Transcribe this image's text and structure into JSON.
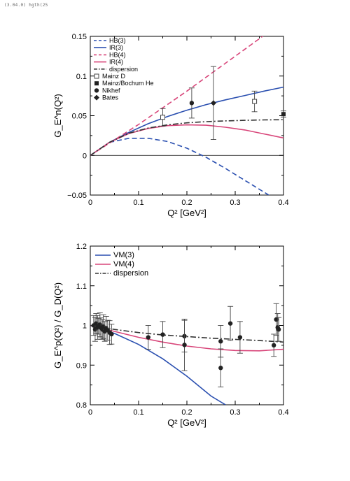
{
  "page_header": "(3.04.0) hgth(25",
  "chart_data": [
    {
      "type": "line",
      "title": "",
      "xlabel": "Q²  [GeV²]",
      "ylabel": "G_E^n(Q²)",
      "xlim": [
        0,
        0.4
      ],
      "ylim": [
        -0.05,
        0.15
      ],
      "xticks": [
        "0",
        "0.1",
        "0.2",
        "0.3",
        "0.4"
      ],
      "yticks": [
        "−0.05",
        "0",
        "0.05",
        "0.1",
        "0.15"
      ],
      "legend": {
        "placement": "top-left"
      },
      "series": [
        {
          "name": "HB(3)",
          "style": "dashed",
          "color": "#2a4fb0",
          "x": [
            0,
            0.04,
            0.08,
            0.12,
            0.16,
            0.2,
            0.24,
            0.28,
            0.32,
            0.36,
            0.38
          ],
          "y": [
            0,
            0.0165,
            0.0215,
            0.0215,
            0.0175,
            0.009,
            -0.0025,
            -0.0165,
            -0.0315,
            -0.0465,
            -0.054
          ]
        },
        {
          "name": "IR(3)",
          "style": "solid",
          "color": "#2a4fb0",
          "x": [
            0,
            0.04,
            0.08,
            0.12,
            0.16,
            0.2,
            0.24,
            0.28,
            0.32,
            0.36,
            0.4
          ],
          "y": [
            0,
            0.0165,
            0.029,
            0.04,
            0.049,
            0.057,
            0.064,
            0.07,
            0.0755,
            0.081,
            0.086
          ]
        },
        {
          "name": "HB(4)",
          "style": "dashed",
          "color": "#d8467a",
          "x": [
            0,
            0.05,
            0.1,
            0.15,
            0.2,
            0.25,
            0.3,
            0.35,
            0.37
          ],
          "y": [
            0,
            0.0195,
            0.039,
            0.06,
            0.081,
            0.103,
            0.125,
            0.147,
            0.156
          ]
        },
        {
          "name": "IR(4)",
          "style": "solid",
          "color": "#d8467a",
          "x": [
            0,
            0.04,
            0.08,
            0.12,
            0.16,
            0.2,
            0.24,
            0.28,
            0.32,
            0.36,
            0.4
          ],
          "y": [
            0,
            0.0165,
            0.0275,
            0.034,
            0.0375,
            0.0385,
            0.038,
            0.0355,
            0.032,
            0.027,
            0.022
          ]
        },
        {
          "name": "dispersion",
          "style": "dashdot",
          "color": "#333333",
          "x": [
            0,
            0.04,
            0.08,
            0.12,
            0.16,
            0.2,
            0.24,
            0.28,
            0.32,
            0.36,
            0.4
          ],
          "y": [
            0,
            0.0165,
            0.028,
            0.0345,
            0.0385,
            0.041,
            0.0425,
            0.0435,
            0.0442,
            0.0447,
            0.045
          ]
        }
      ],
      "points": [
        {
          "name": "Mainz D",
          "marker": "square-open",
          "x": [
            0.15,
            0.34
          ],
          "y": [
            0.048,
            0.068
          ],
          "err": [
            0.011,
            0.013
          ]
        },
        {
          "name": "Mainz/Bochum He",
          "marker": "square-filled",
          "x": [
            0.4
          ],
          "y": [
            0.052
          ],
          "err": [
            0.004
          ]
        },
        {
          "name": "Nikhef",
          "marker": "circle-filled",
          "x": [
            0.21
          ],
          "y": [
            0.066
          ],
          "err": [
            0.019
          ]
        },
        {
          "name": "Bates",
          "marker": "diamond-filled",
          "x": [
            0.255
          ],
          "y": [
            0.066
          ],
          "err": [
            0.046
          ]
        }
      ],
      "reference_line": {
        "y": 0
      }
    },
    {
      "type": "line",
      "title": "",
      "xlabel": "Q²  [GeV²]",
      "ylabel": "G_E^p(Q²) / G_D(Q²)",
      "xlim": [
        0,
        0.4
      ],
      "ylim": [
        0.8,
        1.2
      ],
      "xticks": [
        "0",
        "0.1",
        "0.2",
        "0.3",
        "0.4"
      ],
      "yticks": [
        "0.8",
        "0.9",
        "1",
        "1.1",
        "1.2"
      ],
      "legend": {
        "placement": "top-left"
      },
      "series": [
        {
          "name": "VM(3)",
          "style": "solid",
          "color": "#2a4fb0",
          "x": [
            0,
            0.05,
            0.1,
            0.15,
            0.2,
            0.25,
            0.28
          ],
          "y": [
            1.0,
            0.98,
            0.952,
            0.916,
            0.872,
            0.822,
            0.8
          ]
        },
        {
          "name": "VM(4)",
          "style": "solid",
          "color": "#d8467a",
          "x": [
            0,
            0.05,
            0.1,
            0.15,
            0.2,
            0.25,
            0.3,
            0.35,
            0.4
          ],
          "y": [
            1.0,
            0.985,
            0.97,
            0.958,
            0.948,
            0.941,
            0.937,
            0.936,
            0.94
          ]
        },
        {
          "name": "dispersion",
          "style": "dashdot",
          "color": "#333333",
          "x": [
            0,
            0.05,
            0.1,
            0.15,
            0.2,
            0.25,
            0.3,
            0.35,
            0.4
          ],
          "y": [
            1.0,
            0.99,
            0.982,
            0.976,
            0.972,
            0.968,
            0.965,
            0.962,
            0.958
          ]
        }
      ],
      "points": [
        {
          "name": "data",
          "marker": "circle-filled",
          "x": [
            0.007,
            0.01,
            0.012,
            0.015,
            0.017,
            0.02,
            0.022,
            0.025,
            0.027,
            0.03,
            0.033,
            0.036,
            0.04,
            0.044,
            0.12,
            0.15,
            0.195,
            0.195,
            0.27,
            0.27,
            0.29,
            0.31,
            0.38,
            0.385,
            0.388,
            0.39
          ],
          "y": [
            1.0,
            0.99,
            1.005,
            0.995,
            0.998,
            1.002,
            0.994,
            0.99,
            0.997,
            0.985,
            0.993,
            0.988,
            0.982,
            0.978,
            0.97,
            0.977,
            0.973,
            0.951,
            0.96,
            0.893,
            1.005,
            0.97,
            0.95,
            1.015,
            0.995,
            0.99
          ],
          "err": [
            0.025,
            0.03,
            0.025,
            0.03,
            0.02,
            0.03,
            0.025,
            0.025,
            0.03,
            0.025,
            0.03,
            0.025,
            0.03,
            0.025,
            0.03,
            0.033,
            0.04,
            0.065,
            0.04,
            0.048,
            0.043,
            0.04,
            0.028,
            0.04,
            0.035,
            0.03
          ]
        }
      ]
    }
  ]
}
